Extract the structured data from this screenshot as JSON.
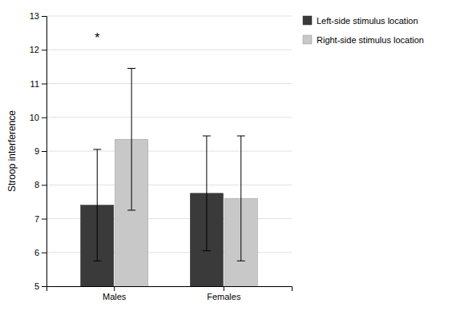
{
  "chart_data": {
    "type": "bar",
    "ylabel": "Stroop interference",
    "categories": [
      "Males",
      "Females"
    ],
    "series": [
      {
        "name": "Left-side stimulus location",
        "color": "#3a3a3a",
        "values": [
          7.4,
          7.75
        ],
        "errors": [
          1.65,
          1.7
        ]
      },
      {
        "name": "Right-side stimulus location",
        "color": "#c8c8c8",
        "values": [
          9.35,
          7.6
        ],
        "errors": [
          2.1,
          1.85
        ]
      }
    ],
    "ylim": [
      5,
      13
    ],
    "yticks": [
      5,
      6,
      7,
      8,
      9,
      10,
      11,
      12,
      13
    ],
    "grid": true,
    "legend": "right",
    "annotations": [
      {
        "text": "*",
        "category": "Males",
        "y": 12.35
      }
    ]
  }
}
